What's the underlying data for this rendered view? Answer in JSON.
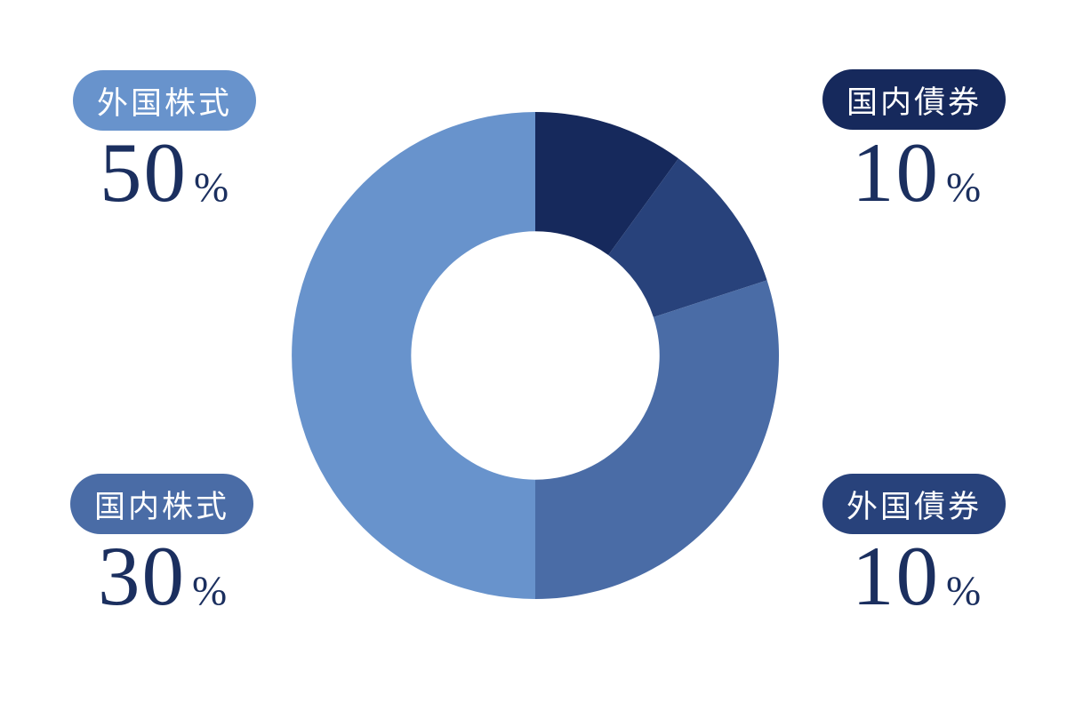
{
  "chart_data": {
    "type": "pie",
    "subtype": "donut",
    "title": "",
    "categories": [
      "国内債券",
      "外国債券",
      "国内株式",
      "外国株式"
    ],
    "slugs": [
      "domestic-bonds",
      "foreign-bonds",
      "domestic-stocks",
      "foreign-stocks"
    ],
    "values": [
      10,
      10,
      30,
      50
    ],
    "unit": "%",
    "colors": [
      "#16295c",
      "#28427b",
      "#4a6ca6",
      "#6893cc"
    ],
    "start_angle_deg": 0,
    "direction": "clockwise",
    "inner_radius_ratio": 0.51,
    "legend_position": "corners",
    "grid": false
  },
  "labels": {
    "top_left": {
      "name": "外国株式",
      "value": "50",
      "unit": "%",
      "pill_color": "#6893cc"
    },
    "top_right": {
      "name": "国内債券",
      "value": "10",
      "unit": "%",
      "pill_color": "#16295c"
    },
    "bottom_left": {
      "name": "国内株式",
      "value": "30",
      "unit": "%",
      "pill_color": "#4a6ca6"
    },
    "bottom_right": {
      "name": "外国債券",
      "value": "10",
      "unit": "%",
      "pill_color": "#28427b"
    }
  },
  "colors": {
    "background": "#ffffff",
    "number_text": "#1b2f5f",
    "pill_text": "#ffffff"
  }
}
